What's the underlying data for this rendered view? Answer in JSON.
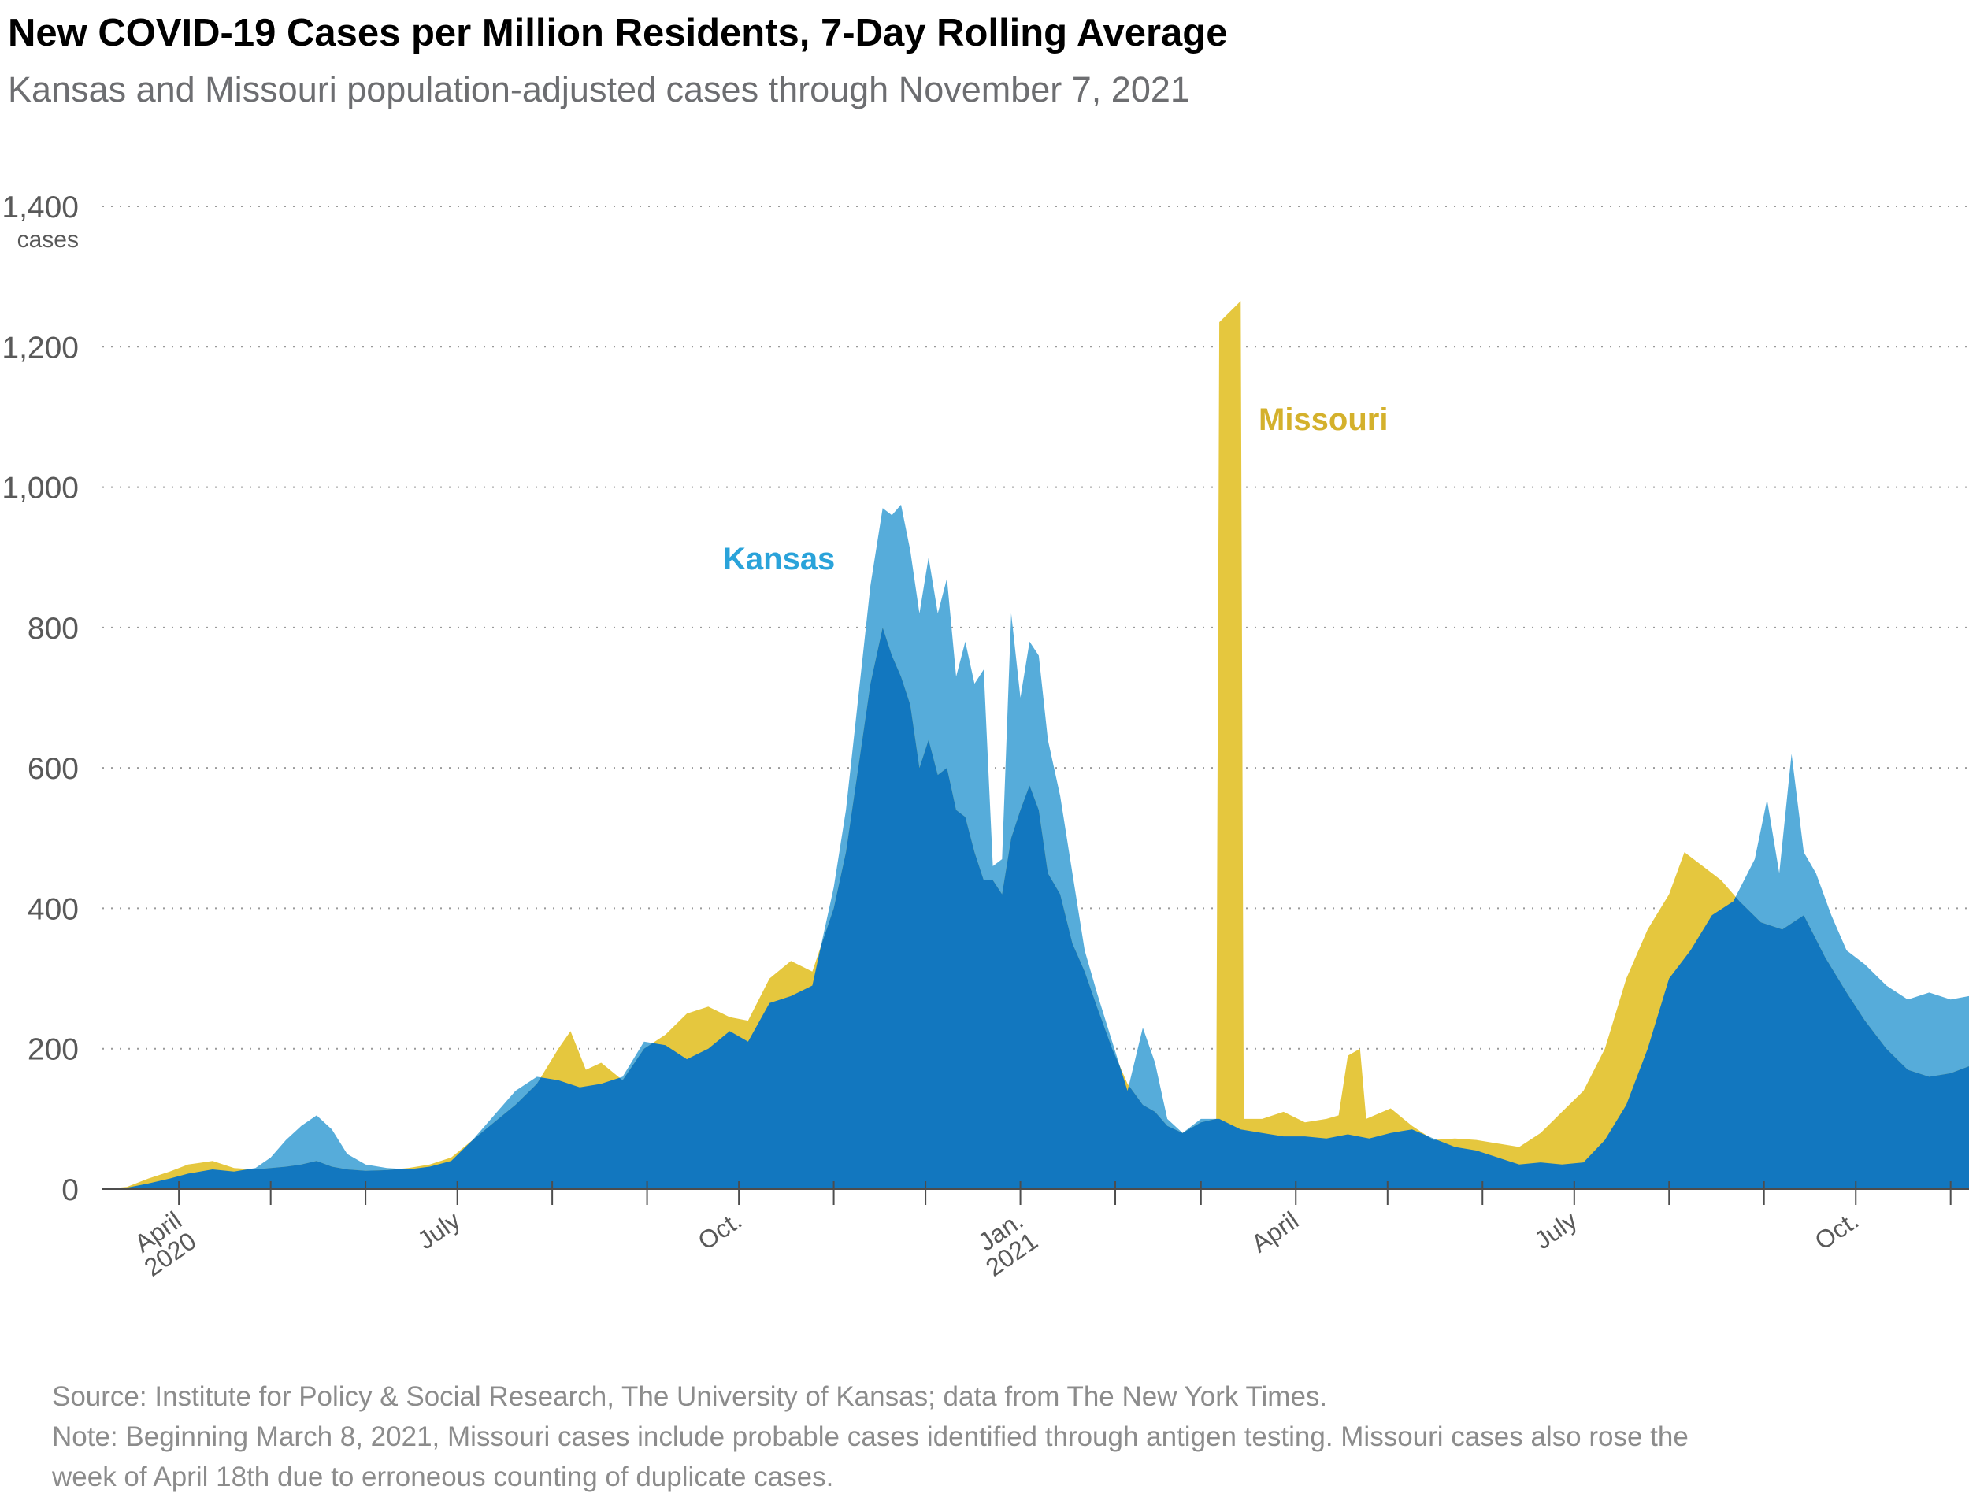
{
  "title": "New COVID-19 Cases per Million Residents, 7-Day Rolling Average",
  "subtitle": "Kansas and Missouri population-adjusted cases through November 7, 2021",
  "source": "Source: Institute for Policy & Social Research, The University of Kansas; data from The New York Times.",
  "note_line1": "Note: Beginning March 8, 2021, Missouri cases include probable cases identified through antigen testing. Missouri cases also rose the",
  "note_line2": "week of April 18th due to erroneous counting of duplicate cases.",
  "colors": {
    "kansas": "#56acda",
    "missouri": "#e5c73e",
    "overlap": "#1277bf",
    "grid": "#9a9a9a"
  },
  "chart_data": {
    "type": "area",
    "title": "New COVID-19 Cases per Million Residents, 7-Day Rolling Average",
    "subtitle": "Kansas and Missouri population-adjusted cases through November 7, 2021",
    "y_unit_label": "cases",
    "ylim": [
      0,
      1400
    ],
    "yticks": [
      {
        "value": 0,
        "label": "0"
      },
      {
        "value": 200,
        "label": "200"
      },
      {
        "value": 400,
        "label": "400"
      },
      {
        "value": 600,
        "label": "600"
      },
      {
        "value": 800,
        "label": "800"
      },
      {
        "value": 1000,
        "label": "1,000"
      },
      {
        "value": 1200,
        "label": "1,200"
      },
      {
        "value": 1400,
        "label": "1,400"
      }
    ],
    "xlim": [
      "2020-03-07",
      "2021-11-07"
    ],
    "xticks": [
      "2020-04-01",
      "2020-05-01",
      "2020-06-01",
      "2020-07-01",
      "2020-08-01",
      "2020-09-01",
      "2020-10-01",
      "2020-11-01",
      "2020-12-01",
      "2021-01-01",
      "2021-02-01",
      "2021-03-01",
      "2021-04-01",
      "2021-05-01",
      "2021-06-01",
      "2021-07-01",
      "2021-08-01",
      "2021-09-01",
      "2021-10-01",
      "2021-11-01"
    ],
    "xtick_labels": [
      {
        "date": "2020-04-01",
        "lines": [
          "April",
          "2020"
        ]
      },
      {
        "date": "2020-07-01",
        "lines": [
          "July"
        ]
      },
      {
        "date": "2020-10-01",
        "lines": [
          "Oct."
        ]
      },
      {
        "date": "2021-01-01",
        "lines": [
          "Jan.",
          "2021"
        ]
      },
      {
        "date": "2021-04-01",
        "lines": [
          "April"
        ]
      },
      {
        "date": "2021-07-01",
        "lines": [
          "July"
        ]
      },
      {
        "date": "2021-10-01",
        "lines": [
          "Oct."
        ]
      }
    ],
    "grid": "horizontal dotted",
    "series": [
      {
        "name": "Kansas",
        "label_position": "near November 2020 peak",
        "points": [
          [
            "2020-03-07",
            0
          ],
          [
            "2020-03-15",
            2
          ],
          [
            "2020-03-22",
            8
          ],
          [
            "2020-03-29",
            15
          ],
          [
            "2020-04-04",
            22
          ],
          [
            "2020-04-12",
            28
          ],
          [
            "2020-04-19",
            25
          ],
          [
            "2020-04-26",
            30
          ],
          [
            "2020-05-01",
            45
          ],
          [
            "2020-05-06",
            70
          ],
          [
            "2020-05-11",
            90
          ],
          [
            "2020-05-16",
            105
          ],
          [
            "2020-05-21",
            85
          ],
          [
            "2020-05-26",
            50
          ],
          [
            "2020-06-01",
            35
          ],
          [
            "2020-06-08",
            30
          ],
          [
            "2020-06-15",
            28
          ],
          [
            "2020-06-22",
            32
          ],
          [
            "2020-06-29",
            40
          ],
          [
            "2020-07-06",
            70
          ],
          [
            "2020-07-13",
            105
          ],
          [
            "2020-07-20",
            140
          ],
          [
            "2020-07-27",
            160
          ],
          [
            "2020-08-03",
            155
          ],
          [
            "2020-08-10",
            145
          ],
          [
            "2020-08-17",
            150
          ],
          [
            "2020-08-24",
            160
          ],
          [
            "2020-08-31",
            210
          ],
          [
            "2020-09-07",
            205
          ],
          [
            "2020-09-14",
            185
          ],
          [
            "2020-09-21",
            200
          ],
          [
            "2020-09-28",
            225
          ],
          [
            "2020-10-04",
            210
          ],
          [
            "2020-10-11",
            265
          ],
          [
            "2020-10-18",
            275
          ],
          [
            "2020-10-25",
            290
          ],
          [
            "2020-11-01",
            430
          ],
          [
            "2020-11-05",
            540
          ],
          [
            "2020-11-09",
            700
          ],
          [
            "2020-11-13",
            860
          ],
          [
            "2020-11-17",
            970
          ],
          [
            "2020-11-20",
            960
          ],
          [
            "2020-11-23",
            975
          ],
          [
            "2020-11-26",
            910
          ],
          [
            "2020-11-29",
            820
          ],
          [
            "2020-12-02",
            900
          ],
          [
            "2020-12-05",
            820
          ],
          [
            "2020-12-08",
            870
          ],
          [
            "2020-12-11",
            730
          ],
          [
            "2020-12-14",
            780
          ],
          [
            "2020-12-17",
            720
          ],
          [
            "2020-12-20",
            740
          ],
          [
            "2020-12-23",
            460
          ],
          [
            "2020-12-26",
            470
          ],
          [
            "2020-12-29",
            820
          ],
          [
            "2021-01-01",
            700
          ],
          [
            "2021-01-04",
            780
          ],
          [
            "2021-01-07",
            760
          ],
          [
            "2021-01-10",
            640
          ],
          [
            "2021-01-14",
            560
          ],
          [
            "2021-01-18",
            450
          ],
          [
            "2021-01-22",
            340
          ],
          [
            "2021-01-26",
            280
          ],
          [
            "2021-01-31",
            210
          ],
          [
            "2021-02-05",
            140
          ],
          [
            "2021-02-10",
            230
          ],
          [
            "2021-02-14",
            180
          ],
          [
            "2021-02-18",
            100
          ],
          [
            "2021-02-23",
            80
          ],
          [
            "2021-03-01",
            100
          ],
          [
            "2021-03-07",
            100
          ],
          [
            "2021-03-14",
            85
          ],
          [
            "2021-03-21",
            80
          ],
          [
            "2021-03-28",
            75
          ],
          [
            "2021-04-04",
            75
          ],
          [
            "2021-04-11",
            72
          ],
          [
            "2021-04-18",
            78
          ],
          [
            "2021-04-25",
            72
          ],
          [
            "2021-05-02",
            80
          ],
          [
            "2021-05-09",
            85
          ],
          [
            "2021-05-16",
            72
          ],
          [
            "2021-05-23",
            60
          ],
          [
            "2021-05-30",
            55
          ],
          [
            "2021-06-06",
            45
          ],
          [
            "2021-06-13",
            35
          ],
          [
            "2021-06-20",
            38
          ],
          [
            "2021-06-27",
            35
          ],
          [
            "2021-07-04",
            38
          ],
          [
            "2021-07-11",
            70
          ],
          [
            "2021-07-18",
            120
          ],
          [
            "2021-07-25",
            200
          ],
          [
            "2021-08-01",
            300
          ],
          [
            "2021-08-08",
            340
          ],
          [
            "2021-08-15",
            390
          ],
          [
            "2021-08-22",
            410
          ],
          [
            "2021-08-29",
            470
          ],
          [
            "2021-09-02",
            555
          ],
          [
            "2021-09-06",
            450
          ],
          [
            "2021-09-10",
            620
          ],
          [
            "2021-09-14",
            480
          ],
          [
            "2021-09-18",
            450
          ],
          [
            "2021-09-23",
            390
          ],
          [
            "2021-09-28",
            340
          ],
          [
            "2021-10-04",
            320
          ],
          [
            "2021-10-11",
            290
          ],
          [
            "2021-10-18",
            270
          ],
          [
            "2021-10-25",
            280
          ],
          [
            "2021-11-01",
            270
          ],
          [
            "2021-11-07",
            275
          ]
        ]
      },
      {
        "name": "Missouri",
        "label_position": "right of March 2021 spike",
        "points": [
          [
            "2020-03-07",
            0
          ],
          [
            "2020-03-15",
            3
          ],
          [
            "2020-03-22",
            15
          ],
          [
            "2020-03-29",
            25
          ],
          [
            "2020-04-04",
            35
          ],
          [
            "2020-04-12",
            40
          ],
          [
            "2020-04-19",
            30
          ],
          [
            "2020-04-26",
            28
          ],
          [
            "2020-05-01",
            30
          ],
          [
            "2020-05-06",
            32
          ],
          [
            "2020-05-11",
            35
          ],
          [
            "2020-05-16",
            40
          ],
          [
            "2020-05-21",
            32
          ],
          [
            "2020-05-26",
            28
          ],
          [
            "2020-06-01",
            26
          ],
          [
            "2020-06-08",
            27
          ],
          [
            "2020-06-15",
            30
          ],
          [
            "2020-06-22",
            35
          ],
          [
            "2020-06-29",
            45
          ],
          [
            "2020-07-06",
            70
          ],
          [
            "2020-07-13",
            95
          ],
          [
            "2020-07-20",
            120
          ],
          [
            "2020-07-27",
            150
          ],
          [
            "2020-08-03",
            200
          ],
          [
            "2020-08-07",
            225
          ],
          [
            "2020-08-12",
            170
          ],
          [
            "2020-08-17",
            180
          ],
          [
            "2020-08-24",
            155
          ],
          [
            "2020-08-31",
            200
          ],
          [
            "2020-09-07",
            220
          ],
          [
            "2020-09-14",
            250
          ],
          [
            "2020-09-21",
            260
          ],
          [
            "2020-09-28",
            245
          ],
          [
            "2020-10-04",
            240
          ],
          [
            "2020-10-11",
            300
          ],
          [
            "2020-10-18",
            325
          ],
          [
            "2020-10-25",
            310
          ],
          [
            "2020-11-01",
            400
          ],
          [
            "2020-11-05",
            480
          ],
          [
            "2020-11-09",
            600
          ],
          [
            "2020-11-13",
            720
          ],
          [
            "2020-11-17",
            800
          ],
          [
            "2020-11-20",
            760
          ],
          [
            "2020-11-23",
            730
          ],
          [
            "2020-11-26",
            690
          ],
          [
            "2020-11-29",
            600
          ],
          [
            "2020-12-02",
            640
          ],
          [
            "2020-12-05",
            590
          ],
          [
            "2020-12-08",
            600
          ],
          [
            "2020-12-11",
            540
          ],
          [
            "2020-12-14",
            530
          ],
          [
            "2020-12-17",
            480
          ],
          [
            "2020-12-20",
            440
          ],
          [
            "2020-12-23",
            440
          ],
          [
            "2020-12-26",
            420
          ],
          [
            "2020-12-29",
            500
          ],
          [
            "2021-01-01",
            540
          ],
          [
            "2021-01-04",
            575
          ],
          [
            "2021-01-07",
            540
          ],
          [
            "2021-01-10",
            450
          ],
          [
            "2021-01-14",
            420
          ],
          [
            "2021-01-18",
            350
          ],
          [
            "2021-01-22",
            310
          ],
          [
            "2021-01-26",
            260
          ],
          [
            "2021-01-31",
            200
          ],
          [
            "2021-02-05",
            150
          ],
          [
            "2021-02-10",
            120
          ],
          [
            "2021-02-14",
            110
          ],
          [
            "2021-02-18",
            90
          ],
          [
            "2021-02-23",
            80
          ],
          [
            "2021-03-01",
            95
          ],
          [
            "2021-03-06",
            100
          ],
          [
            "2021-03-07",
            1235
          ],
          [
            "2021-03-14",
            1265
          ],
          [
            "2021-03-15",
            100
          ],
          [
            "2021-03-21",
            100
          ],
          [
            "2021-03-28",
            110
          ],
          [
            "2021-04-04",
            95
          ],
          [
            "2021-04-11",
            100
          ],
          [
            "2021-04-15",
            105
          ],
          [
            "2021-04-18",
            190
          ],
          [
            "2021-04-22",
            200
          ],
          [
            "2021-04-24",
            100
          ],
          [
            "2021-05-02",
            115
          ],
          [
            "2021-05-09",
            90
          ],
          [
            "2021-05-16",
            70
          ],
          [
            "2021-05-23",
            72
          ],
          [
            "2021-05-30",
            70
          ],
          [
            "2021-06-06",
            65
          ],
          [
            "2021-06-13",
            60
          ],
          [
            "2021-06-20",
            80
          ],
          [
            "2021-06-27",
            110
          ],
          [
            "2021-07-04",
            140
          ],
          [
            "2021-07-11",
            200
          ],
          [
            "2021-07-18",
            300
          ],
          [
            "2021-07-25",
            370
          ],
          [
            "2021-08-01",
            420
          ],
          [
            "2021-08-06",
            480
          ],
          [
            "2021-08-12",
            460
          ],
          [
            "2021-08-18",
            440
          ],
          [
            "2021-08-24",
            410
          ],
          [
            "2021-08-31",
            380
          ],
          [
            "2021-09-07",
            370
          ],
          [
            "2021-09-14",
            390
          ],
          [
            "2021-09-21",
            330
          ],
          [
            "2021-09-28",
            280
          ],
          [
            "2021-10-04",
            240
          ],
          [
            "2021-10-11",
            200
          ],
          [
            "2021-10-18",
            170
          ],
          [
            "2021-10-25",
            160
          ],
          [
            "2021-11-01",
            165
          ],
          [
            "2021-11-07",
            175
          ]
        ]
      }
    ]
  }
}
